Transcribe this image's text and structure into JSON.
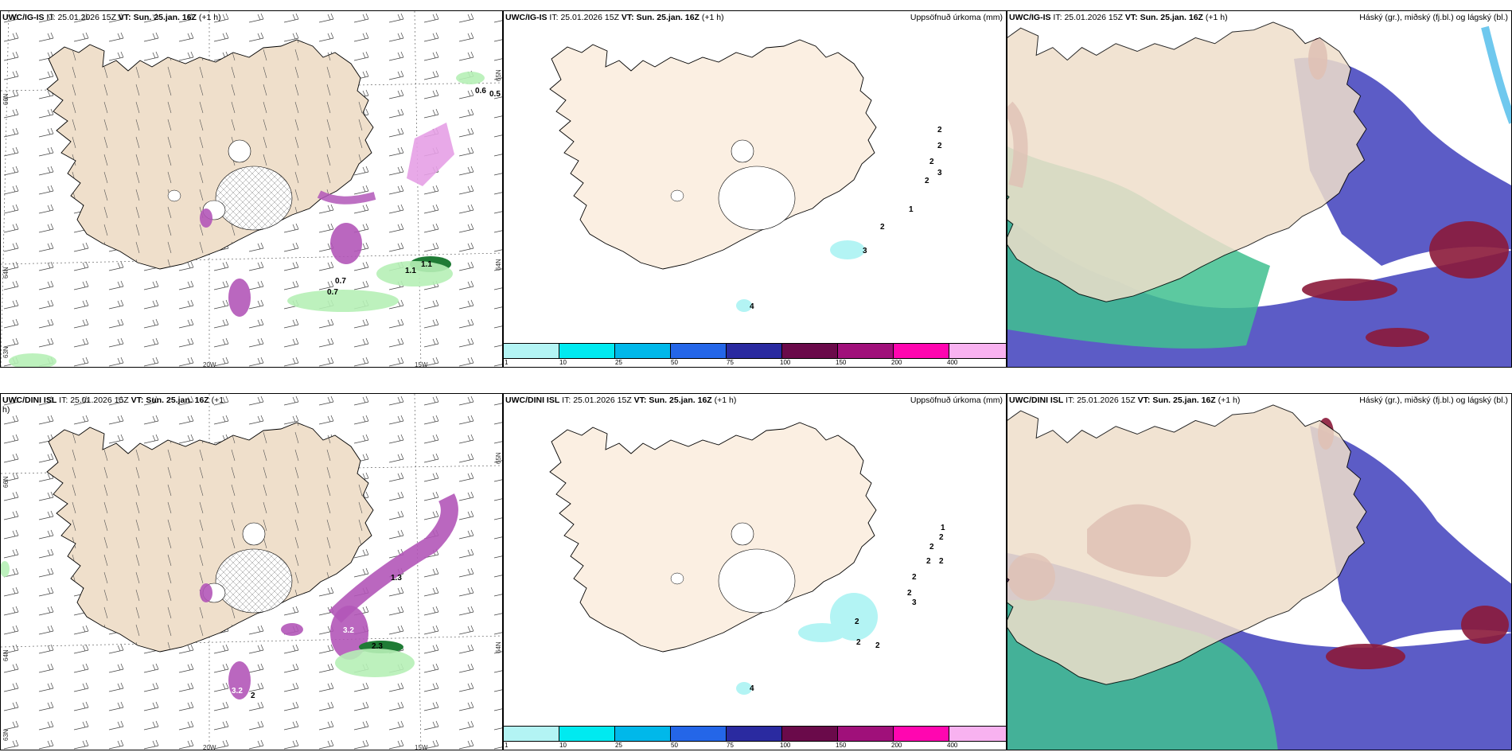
{
  "colors": {
    "land": "#efdfcb",
    "land_plain": "#fbefe2",
    "snow": "#ffffff",
    "precip_magenta": "#b257b8",
    "precip_light_green": "#b6efb6",
    "precip_dark_green": "#1f7b35",
    "cloud_high_red": "#8b1a3a",
    "cloud_mid_blue": "#4a4ac0",
    "cloud_low_green": "#3fbf8f",
    "cloud_cyan": "#6fc8ee"
  },
  "panels": {
    "top_left": {
      "model": "UWC/IG-IS",
      "it_label": "IT:",
      "it_value": "25.01.2026 15Z",
      "vt_label": "VT:",
      "vt_value": "Sun. 25.jan. 16Z",
      "lead": "(+1 h)",
      "lat_labels": [
        "66N",
        "64N",
        "63N"
      ],
      "right_lat_labels": [
        "65N",
        "64N"
      ],
      "lon_labels": [
        "20W",
        "15W"
      ],
      "value_labels": [
        "0.6",
        "0.5",
        "1.1",
        "1.1",
        "0.7",
        "0.7"
      ]
    },
    "top_mid": {
      "model": "UWC/IG-IS",
      "it_label": "IT:",
      "it_value": "25.01.2026 15Z",
      "vt_label": "VT:",
      "vt_value": "Sun. 25.jan. 16Z",
      "lead": "(+1 h)",
      "title_right": "Uppsöfnuð úrkoma (mm)",
      "contour_labels": [
        "2",
        "2",
        "2",
        "3",
        "2",
        "1",
        "2",
        "3",
        "4"
      ]
    },
    "top_right": {
      "model": "UWC/IG-IS",
      "it_label": "IT:",
      "it_value": "25.01.2026 15Z",
      "vt_label": "VT:",
      "vt_value": "Sun. 25.jan. 16Z",
      "lead": "(+1 h)",
      "title_right": "Háský (gr.), miðský (fj.bl.) og lágský (bl.)"
    },
    "bottom_left": {
      "model": "UWC/DINI ISL",
      "it_label": "IT:",
      "it_value": "25.01.2026 15Z",
      "vt_label": "VT:",
      "vt_value": "Sun. 25.jan. 16Z",
      "lead": "(+1",
      "lead_cont": "h)",
      "lat_labels": [
        "66N",
        "64N",
        "63N"
      ],
      "right_lat_labels": [
        "65N",
        "64N"
      ],
      "lon_labels": [
        "20W",
        "15W"
      ],
      "value_labels": [
        "3.2",
        "3.2",
        "2.3",
        "1.3",
        "2"
      ]
    },
    "bottom_mid": {
      "model": "UWC/DINI ISL",
      "it_label": "IT:",
      "it_value": "25.01.2026 15Z",
      "vt_label": "VT:",
      "vt_value": "Sun. 25.jan. 16Z",
      "lead": "(+1 h)",
      "title_right": "Uppsöfnuð úrkoma (mm)",
      "contour_labels": [
        "1",
        "2",
        "2",
        "2",
        "2",
        "2",
        "2",
        "3",
        "2",
        "2",
        "2",
        "4"
      ]
    },
    "bottom_right": {
      "model": "UWC/DINI ISL",
      "it_label": "IT:",
      "it_value": "25.01.2026 15Z",
      "vt_label": "VT:",
      "vt_value": "Sun. 25.jan. 16Z",
      "lead": "(+1 h)",
      "title_right": "Háský (gr.), miðský (fj.bl.) og lágský (bl.)"
    }
  },
  "colorbar": {
    "ticks": [
      "1",
      "10",
      "25",
      "50",
      "75",
      "100",
      "150",
      "200",
      "400"
    ],
    "colors": [
      "#b3f4f4",
      "#00eaf0",
      "#00b8ea",
      "#2466e8",
      "#2a2aa0",
      "#6a0a4a",
      "#a0107a",
      "#ff06b0",
      "#f8b2f0"
    ]
  }
}
